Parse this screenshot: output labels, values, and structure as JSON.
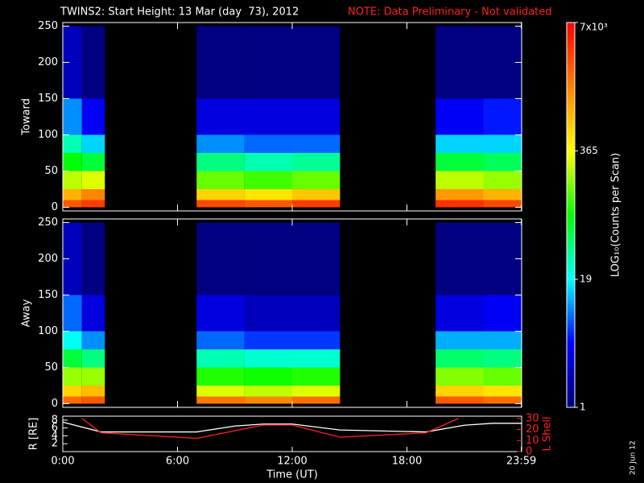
{
  "header": {
    "title": "TWINS2: Start Height: 13 Mar (day  73), 2012",
    "note": "NOTE: Data Preliminary - Not validated",
    "date_stamp": "20 Jun 12"
  },
  "chart_data": [
    {
      "type": "heatmap",
      "ylabel": "Toward",
      "xlim": [
        0,
        24
      ],
      "ylim": [
        -5,
        255
      ],
      "yticks": [
        0,
        50,
        100,
        150,
        200,
        250
      ],
      "xbins": [
        0,
        1,
        2.2,
        7,
        9.5,
        12,
        14.5,
        19.5,
        22,
        24
      ],
      "ybins": [
        0,
        10,
        25,
        50,
        75,
        100,
        150,
        250
      ],
      "values": [
        [
          2500,
          3500,
          null,
          3000,
          2500,
          3500,
          null,
          4000,
          3000
        ],
        [
          900,
          1500,
          null,
          600,
          500,
          700,
          null,
          1200,
          900
        ],
        [
          250,
          300,
          null,
          150,
          120,
          150,
          null,
          250,
          200
        ],
        [
          80,
          60,
          null,
          40,
          30,
          35,
          null,
          60,
          50
        ],
        [
          30,
          15,
          null,
          10,
          8,
          8,
          null,
          15,
          15
        ],
        [
          10,
          4,
          null,
          3,
          3,
          3,
          null,
          4,
          5
        ],
        [
          2,
          1,
          null,
          1,
          1,
          1,
          null,
          1,
          1
        ]
      ],
      "colorbar": {
        "label": "LOG₁₀(Counts per Scan)",
        "log": true,
        "lim": [
          1,
          7000
        ],
        "ticks": [
          1,
          19,
          365,
          {
            "value": 7000,
            "label": "7x10³"
          }
        ],
        "colors": [
          "#000080",
          "#0000ff",
          "#00ffff",
          "#00ff00",
          "#ffff00",
          "#ff8000",
          "#ff0000"
        ]
      }
    },
    {
      "type": "heatmap",
      "ylabel": "Away",
      "xlim": [
        0,
        24
      ],
      "ylim": [
        -5,
        255
      ],
      "yticks": [
        0,
        50,
        100,
        150,
        200,
        250
      ],
      "xbins": [
        0,
        1,
        2.2,
        7,
        9.5,
        12,
        14.5,
        19.5,
        22,
        24
      ],
      "ybins": [
        0,
        10,
        25,
        50,
        75,
        100,
        150,
        250
      ],
      "values": [
        [
          2000,
          2500,
          null,
          1800,
          1500,
          2000,
          null,
          2500,
          2000
        ],
        [
          600,
          800,
          null,
          300,
          250,
          300,
          null,
          600,
          500
        ],
        [
          200,
          200,
          null,
          100,
          90,
          100,
          null,
          180,
          150
        ],
        [
          60,
          40,
          null,
          30,
          25,
          25,
          null,
          45,
          40
        ],
        [
          20,
          10,
          null,
          8,
          6,
          6,
          null,
          12,
          12
        ],
        [
          8,
          3,
          null,
          3,
          2,
          2,
          null,
          3,
          4
        ],
        [
          2,
          1,
          null,
          1,
          1,
          1,
          null,
          1,
          1
        ]
      ]
    },
    {
      "type": "line",
      "xlabel": "Time (UT)",
      "ylabel": "R [RE]",
      "y2label": "L Shell",
      "xlim": [
        0,
        24
      ],
      "xticks": [
        {
          "value": 0,
          "label": "0:00"
        },
        {
          "value": 6,
          "label": "6:00"
        },
        {
          "value": 12,
          "label": "12:00"
        },
        {
          "value": 18,
          "label": "18:00"
        },
        {
          "value": 23.983,
          "label": "23:59"
        }
      ],
      "ylim": [
        0,
        9
      ],
      "yticks": [
        2,
        4,
        6,
        8
      ],
      "y2lim": [
        0,
        32
      ],
      "y2ticks": [
        0,
        10,
        20,
        30
      ],
      "series": [
        {
          "color": "#ffffff",
          "x": [
            0,
            2,
            7,
            9,
            10.5,
            12,
            14.5,
            19,
            21,
            22.5,
            24
          ],
          "values": [
            7.5,
            5,
            5,
            6.5,
            7,
            7,
            5.5,
            5,
            6.7,
            7.2,
            7.2
          ]
        },
        {
          "color": "#ff2020",
          "axis": "y2",
          "x": [
            1,
            2,
            7,
            10.5,
            12,
            14.5,
            19,
            20.7
          ],
          "values": [
            30,
            17,
            12,
            24,
            24,
            13,
            17,
            30
          ]
        }
      ]
    }
  ]
}
